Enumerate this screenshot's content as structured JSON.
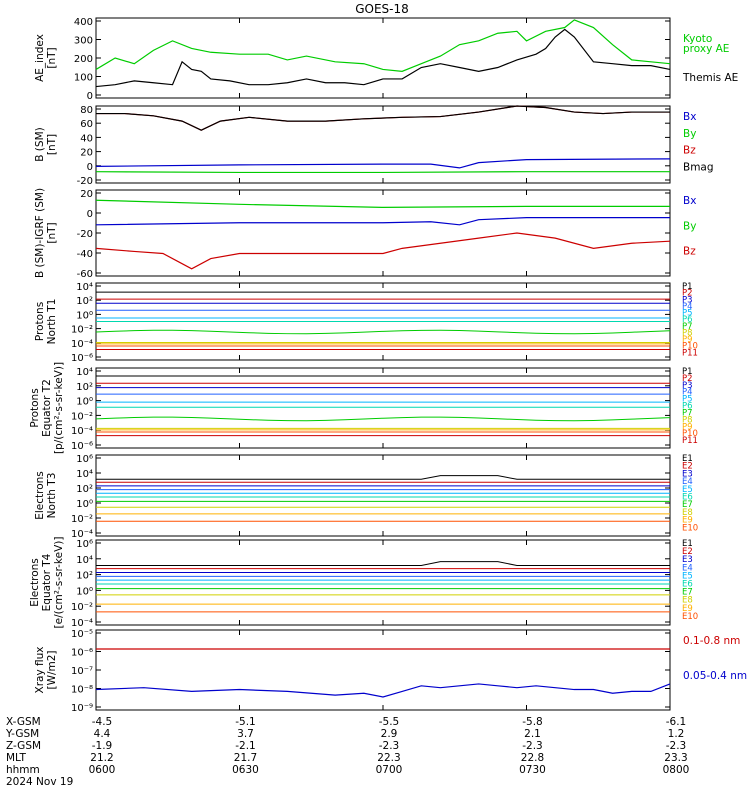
{
  "title": "GOES-18",
  "colors": {
    "black": "#000000",
    "green": "#00cc00",
    "red": "#cc0000",
    "blue": "#0000cc",
    "channels": [
      "#000000",
      "#cc0000",
      "#0000cc",
      "#2060ff",
      "#00b4ff",
      "#00d8b0",
      "#00cc00",
      "#d0d000",
      "#ffb000",
      "#ff5000",
      "#cc0000"
    ]
  },
  "panels": [
    {
      "id": "ae",
      "ylabel": [
        "AE_index",
        "[nT]"
      ],
      "yticks": [
        "400",
        "300",
        "200",
        "100",
        "0"
      ],
      "legend": [
        {
          "text": "Kyoto",
          "color": "#00cc00"
        },
        {
          "text": "proxy AE",
          "color": "#00cc00"
        },
        {
          "text": "Themis AE",
          "color": "#000000"
        }
      ]
    },
    {
      "id": "bsm",
      "ylabel": [
        "B (SM)",
        "[nT]"
      ],
      "yticks": [
        "80",
        "60",
        "40",
        "20",
        "0",
        "-20"
      ],
      "legend": [
        {
          "text": "Bx",
          "color": "#0000cc"
        },
        {
          "text": "By",
          "color": "#00cc00"
        },
        {
          "text": "Bz",
          "color": "#cc0000"
        },
        {
          "text": "Bmag",
          "color": "#000000"
        }
      ]
    },
    {
      "id": "bdiff",
      "ylabel": [
        "B (SM)-IGRF (SM)",
        "[nT]"
      ],
      "yticks": [
        "20",
        "0",
        "-20",
        "-40",
        "-60"
      ],
      "legend": [
        {
          "text": "Bx",
          "color": "#0000cc"
        },
        {
          "text": "By",
          "color": "#00cc00"
        },
        {
          "text": "Bz",
          "color": "#cc0000"
        }
      ]
    },
    {
      "id": "pn",
      "ylabel": [
        "Protons",
        "North T1"
      ],
      "yticks": [
        "10⁴",
        "10²",
        "10⁰",
        "10⁻²",
        "10⁻⁴",
        "10⁻⁶"
      ],
      "legend": [
        "P1",
        "P2",
        "P3",
        "P4",
        "P5",
        "P6",
        "P7",
        "P8",
        "P9",
        "P10",
        "P11"
      ]
    },
    {
      "id": "pe",
      "ylabel": [
        "Protons",
        "Equator T2",
        "[p/(cm²-s-sr-keV)]"
      ],
      "yticks": [
        "10⁴",
        "10²",
        "10⁰",
        "10⁻²",
        "10⁻⁴",
        "10⁻⁶"
      ],
      "legend": [
        "P1",
        "P2",
        "P3",
        "P4",
        "P5",
        "P6",
        "P7",
        "P8",
        "P9",
        "P10",
        "P11"
      ]
    },
    {
      "id": "en",
      "ylabel": [
        "Electrons",
        "North T3"
      ],
      "yticks": [
        "10⁶",
        "10⁴",
        "10²",
        "10⁰",
        "10⁻²",
        "10⁻⁴"
      ],
      "legend": [
        "E1",
        "E2",
        "E3",
        "E4",
        "E5",
        "E6",
        "E7",
        "E8",
        "E9",
        "E10"
      ]
    },
    {
      "id": "ee",
      "ylabel": [
        "Electrons",
        "Equator T4",
        "[e/(cm²-s-sr-keV)]"
      ],
      "yticks": [
        "10⁶",
        "10⁴",
        "10²",
        "10⁰",
        "10⁻²",
        "10⁻⁴"
      ],
      "legend": [
        "E1",
        "E2",
        "E3",
        "E4",
        "E5",
        "E6",
        "E7",
        "E8",
        "E9",
        "E10"
      ]
    },
    {
      "id": "xray",
      "ylabel": [
        "Xray flux",
        "[W/m2]"
      ],
      "yticks": [
        "10⁻⁵",
        "10⁻⁶",
        "10⁻⁷",
        "10⁻⁸",
        "10⁻⁹"
      ],
      "legend": [
        {
          "text": "0.1-0.8 nm",
          "color": "#cc0000"
        },
        {
          "text": "0.05-0.4 nm",
          "color": "#0000cc"
        }
      ]
    }
  ],
  "footer": {
    "row_labels": [
      "X-GSM",
      "Y-GSM",
      "Z-GSM",
      "MLT",
      "hhmm",
      "2024 Nov 19"
    ],
    "columns": [
      [
        "-4.5",
        "4.4",
        "-1.9",
        "21.2",
        "0600"
      ],
      [
        "-5.1",
        "3.7",
        "-2.1",
        "21.7",
        "0630"
      ],
      [
        "-5.5",
        "2.9",
        "-2.3",
        "22.3",
        "0700"
      ],
      [
        "-5.8",
        "2.1",
        "-2.3",
        "22.8",
        "0730"
      ],
      [
        "-6.1",
        "1.2",
        "-2.3",
        "23.3",
        "0800"
      ]
    ]
  },
  "chart_data": {
    "type": "line",
    "title": "GOES-18",
    "x_label": "hhmm",
    "x_ticks": [
      "0600",
      "0630",
      "0700",
      "0730",
      "0800"
    ],
    "x_range": [
      0,
      120
    ],
    "panels": [
      {
        "name": "AE_index [nT]",
        "ylim": [
          0,
          420
        ],
        "series": [
          {
            "name": "Kyoto proxy AE",
            "x": [
              0,
              4,
              8,
              12,
              16,
              20,
              24,
              30,
              36,
              40,
              44,
              50,
              56,
              60,
              64,
              68,
              72,
              76,
              80,
              84,
              88,
              90,
              94,
              98,
              100,
              104,
              108,
              112,
              116,
              120
            ],
            "values": [
              150,
              210,
              180,
              250,
              300,
              260,
              240,
              230,
              230,
              200,
              220,
              190,
              180,
              150,
              140,
              180,
              220,
              280,
              300,
              340,
              350,
              300,
              350,
              370,
              410,
              370,
              280,
              200,
              190,
              180
            ]
          },
          {
            "name": "Themis AE",
            "x": [
              0,
              4,
              8,
              12,
              16,
              18,
              20,
              22,
              24,
              28,
              32,
              36,
              40,
              44,
              48,
              52,
              56,
              60,
              64,
              68,
              72,
              76,
              80,
              84,
              88,
              92,
              94,
              96,
              98,
              100,
              104,
              108,
              112,
              116,
              120
            ],
            "values": [
              60,
              70,
              90,
              80,
              70,
              190,
              150,
              140,
              100,
              90,
              70,
              70,
              80,
              100,
              80,
              80,
              70,
              100,
              100,
              160,
              180,
              160,
              140,
              160,
              200,
              230,
              260,
              320,
              360,
              320,
              190,
              180,
              170,
              170,
              150
            ]
          }
        ]
      },
      {
        "name": "B (SM) [nT]",
        "ylim": [
          -22,
          80
        ],
        "series": [
          {
            "name": "Bx",
            "x": [
              0,
              30,
              60,
              70,
              76,
              80,
              90,
              120
            ],
            "values": [
              0,
              2,
              3,
              3,
              -2,
              5,
              9,
              10
            ]
          },
          {
            "name": "By",
            "x": [
              0,
              30,
              60,
              90,
              120
            ],
            "values": [
              -7,
              -8,
              -8,
              -7,
              -7
            ]
          },
          {
            "name": "Bz",
            "x": [
              0,
              6,
              12,
              18,
              22,
              26,
              32,
              40,
              48,
              56,
              64,
              72,
              80,
              88,
              94,
              100,
              106,
              112,
              120
            ],
            "values": [
              70,
              70,
              67,
              60,
              48,
              60,
              65,
              60,
              60,
              63,
              65,
              66,
              72,
              80,
              78,
              72,
              70,
              72,
              72
            ]
          },
          {
            "name": "Bmag",
            "x": [
              0,
              6,
              12,
              18,
              22,
              26,
              32,
              40,
              48,
              56,
              64,
              72,
              80,
              88,
              94,
              100,
              106,
              112,
              120
            ],
            "values": [
              70,
              70,
              67,
              60,
              48,
              60,
              65,
              60,
              60,
              63,
              65,
              66,
              72,
              80,
              78,
              72,
              70,
              72,
              72
            ]
          }
        ]
      },
      {
        "name": "B (SM)-IGRF (SM) [nT]",
        "ylim": [
          -62,
          22
        ],
        "series": [
          {
            "name": "Bx",
            "x": [
              0,
              30,
              60,
              70,
              76,
              80,
              90,
              120
            ],
            "values": [
              -12,
              -10,
              -10,
              -9,
              -12,
              -7,
              -5,
              -5
            ]
          },
          {
            "name": "By",
            "x": [
              0,
              30,
              60,
              90,
              120
            ],
            "values": [
              12,
              8,
              5,
              6,
              6
            ]
          },
          {
            "name": "Bz",
            "x": [
              0,
              8,
              14,
              18,
              20,
              24,
              30,
              40,
              50,
              60,
              64,
              72,
              80,
              88,
              96,
              104,
              112,
              120
            ],
            "values": [
              -35,
              -38,
              -40,
              -50,
              -55,
              -45,
              -40,
              -40,
              -40,
              -40,
              -35,
              -30,
              -25,
              -20,
              -25,
              -35,
              -30,
              -28
            ]
          }
        ]
      },
      {
        "name": "Protons North T1",
        "ylim_log10": [
          -6.5,
          4.5
        ],
        "series_names": [
          "P1",
          "P2",
          "P3",
          "P4",
          "P5",
          "P6",
          "P7",
          "P8",
          "P9",
          "P10",
          "P11"
        ],
        "log10_levels": [
          3.2,
          2.2,
          1.6,
          0.6,
          -0.5,
          -1.0,
          -2.5,
          -4.0,
          -4.2,
          -4.5,
          -5.0
        ]
      },
      {
        "name": "Protons Equator T2 [p/(cm2-s-sr-keV)]",
        "ylim_log10": [
          -6.5,
          4.5
        ],
        "series_names": [
          "P1",
          "P2",
          "P3",
          "P4",
          "P5",
          "P6",
          "P7",
          "P8",
          "P9",
          "P10",
          "P11"
        ],
        "log10_levels": [
          3.4,
          2.4,
          1.8,
          0.9,
          -0.2,
          -0.9,
          -2.5,
          -3.8,
          -4.0,
          -4.3,
          -4.8
        ]
      },
      {
        "name": "Electrons North T3",
        "ylim_log10": [
          -4.5,
          6.5
        ],
        "series_names": [
          "E1",
          "E2",
          "E3",
          "E4",
          "E5",
          "E6",
          "E7",
          "E8",
          "E9",
          "E10"
        ],
        "log10_levels": [
          3.2,
          2.8,
          2.3,
          1.8,
          1.3,
          0.8,
          0.2,
          -0.6,
          -1.5,
          -2.5
        ]
      },
      {
        "name": "Electrons Equator T4 [e/(cm2-s-sr-keV)]",
        "ylim_log10": [
          -4.5,
          6.5
        ],
        "series_names": [
          "E1",
          "E2",
          "E3",
          "E4",
          "E5",
          "E6",
          "E7",
          "E8",
          "E9",
          "E10"
        ],
        "log10_levels": [
          3.2,
          2.8,
          2.3,
          1.8,
          1.3,
          0.8,
          0.2,
          -0.6,
          -1.8,
          -2.8
        ]
      },
      {
        "name": "Xray flux [W/m2]",
        "ylim_log10": [
          -9.3,
          -5
        ],
        "series": [
          {
            "name": "0.1-0.8 nm",
            "log10_level": -6.02
          },
          {
            "name": "0.05-0.4 nm",
            "x": [
              0,
              10,
              20,
              30,
              40,
              50,
              56,
              60,
              64,
              68,
              72,
              76,
              80,
              84,
              88,
              92,
              96,
              100,
              104,
              108,
              112,
              116,
              120
            ],
            "log10_values": [
              -8.2,
              -8.1,
              -8.3,
              -8.2,
              -8.3,
              -8.5,
              -8.4,
              -8.6,
              -8.3,
              -8.0,
              -8.1,
              -8.0,
              -7.9,
              -8.0,
              -8.1,
              -8.0,
              -8.1,
              -8.2,
              -8.2,
              -8.4,
              -8.3,
              -8.3,
              -7.9
            ]
          }
        ]
      }
    ]
  }
}
